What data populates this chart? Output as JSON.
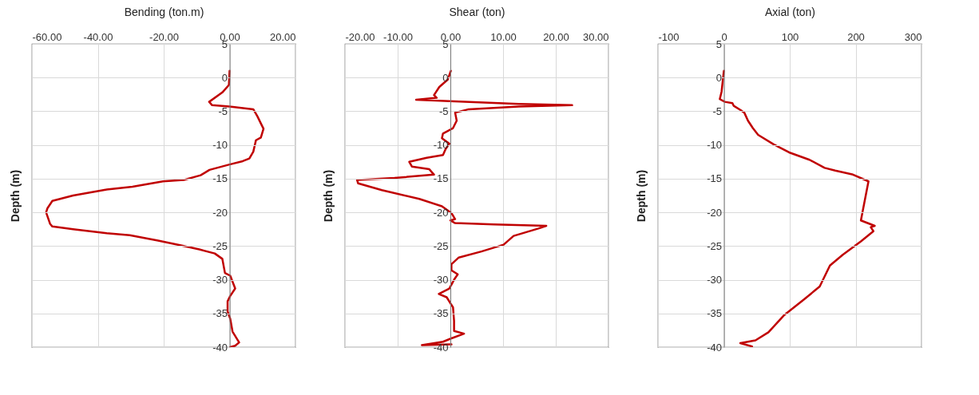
{
  "chart_data": [
    {
      "type": "line",
      "xlabel": "Bending (ton.m)",
      "ylabel": "Depth (m)",
      "xlim": [
        -60,
        20
      ],
      "xticks": [
        {
          "value": -60,
          "label": "-60.00"
        },
        {
          "value": -40,
          "label": "-40.00"
        },
        {
          "value": -20,
          "label": "-20.00"
        },
        {
          "value": 0,
          "label": "0.00"
        },
        {
          "value": 20,
          "label": "20.00"
        }
      ],
      "ylim": [
        -40,
        5
      ],
      "yticks": [
        -40,
        -35,
        -30,
        -25,
        -20,
        -15,
        -10,
        -5,
        0,
        5
      ],
      "grid": true,
      "series": [
        {
          "color": "#c00000",
          "x": [
            0,
            -0.2,
            -2.2,
            -6.2,
            -5.3,
            0,
            7.2,
            8.4,
            10.3,
            9.5,
            8,
            7.2,
            6,
            4,
            0,
            -6.1,
            -8.8,
            -13.9,
            -20.2,
            -29.5,
            -37.3,
            -47.5,
            -53.8,
            -55.3,
            -55.7,
            -54.5,
            -53.8,
            -47.5,
            -37.3,
            -30.3,
            -21.7,
            -13.9,
            -9.2,
            -4.5,
            -2.2,
            -1.4,
            0.2,
            1.7,
            0.2,
            -0.6,
            -0.6,
            0.2,
            0.9,
            2.9,
            1.7,
            0.2
          ],
          "values": [
            1,
            -1.1,
            -2.2,
            -3.6,
            -4.1,
            -4.3,
            -4.7,
            -5.7,
            -7.6,
            -8.9,
            -9.3,
            -11,
            -12,
            -12.4,
            -12.9,
            -13.7,
            -14.5,
            -15.2,
            -15.4,
            -16.2,
            -16.6,
            -17.5,
            -18.3,
            -19.4,
            -20,
            -21.7,
            -22.1,
            -22.5,
            -23.1,
            -23.4,
            -24.2,
            -25,
            -25.5,
            -26.1,
            -26.9,
            -29,
            -29.4,
            -31.3,
            -32.4,
            -33.2,
            -34.7,
            -35.8,
            -37.7,
            -39.3,
            -39.8,
            -40
          ]
        }
      ]
    },
    {
      "type": "line",
      "xlabel": "Shear (ton)",
      "ylabel": "Depth (m)",
      "xlim": [
        -20,
        30
      ],
      "xticks": [
        {
          "value": -20,
          "label": "-20.00"
        },
        {
          "value": -10,
          "label": "-10.00"
        },
        {
          "value": 0,
          "label": "0.00"
        },
        {
          "value": 10,
          "label": "10.00"
        },
        {
          "value": 20,
          "label": "20.00"
        },
        {
          "value": 30,
          "label": "30.00"
        }
      ],
      "ylim": [
        -40,
        5
      ],
      "yticks": [
        -40,
        -35,
        -30,
        -25,
        -20,
        -15,
        -10,
        -5,
        0,
        5
      ],
      "grid": true,
      "series": [
        {
          "color": "#c00000",
          "x": [
            0.1,
            -0.5,
            -2.1,
            -3.1,
            -2.6,
            -6.5,
            -0.2,
            13,
            23.1,
            13,
            3.5,
            0.9,
            1.2,
            0.5,
            -1.4,
            -1.6,
            -0.2,
            -0.9,
            -1.4,
            -4.5,
            -7.8,
            -7.3,
            -4,
            -3.1,
            -10.6,
            -17.7,
            -17.5,
            -13,
            -5.9,
            -1.6,
            0.2,
            0.9,
            0,
            0.9,
            8.3,
            18.2,
            16.7,
            12,
            10.1,
            5.9,
            1.6,
            0.2,
            0.2,
            1.4,
            0.7,
            -0.2,
            -2.2,
            -0.7,
            0.5,
            0.7,
            0.7,
            2.6,
            0.2,
            -1.4,
            -5.4,
            0.2
          ],
          "values": [
            1,
            -0.3,
            -1.4,
            -2.6,
            -3,
            -3.3,
            -3.5,
            -3.9,
            -4.1,
            -4.3,
            -4.7,
            -5.2,
            -6.4,
            -7.5,
            -8.3,
            -9,
            -9.8,
            -10.6,
            -11.5,
            -11.9,
            -12.5,
            -13.2,
            -13.6,
            -14.4,
            -14.9,
            -15.2,
            -15.7,
            -16.7,
            -18,
            -19.1,
            -20.1,
            -21,
            -21.2,
            -21.6,
            -21.8,
            -22,
            -22.4,
            -23.5,
            -24.8,
            -25.8,
            -26.7,
            -27.7,
            -28.6,
            -29.2,
            -30,
            -31.3,
            -32.1,
            -32.6,
            -34.1,
            -36.1,
            -37.6,
            -38,
            -38.7,
            -39.2,
            -39.7,
            -39.6
          ]
        }
      ]
    },
    {
      "type": "line",
      "xlabel": "Axial (ton)",
      "ylabel": "Depth (m)",
      "xlim": [
        -100,
        300
      ],
      "xticks": [
        -100,
        0,
        100,
        200,
        300
      ],
      "ylim": [
        -40,
        5
      ],
      "yticks": [
        -40,
        -35,
        -30,
        -25,
        -20,
        -15,
        -10,
        -5,
        0,
        5
      ],
      "grid": true,
      "series": [
        {
          "color": "#c00000",
          "x": [
            0,
            -3.5,
            -6.2,
            1.6,
            13,
            15,
            25,
            31,
            36.6,
            44,
            52,
            75.5,
            99,
            130,
            153,
            169,
            196,
            219.5,
            208,
            229,
            223,
            227,
            208,
            180.5,
            161,
            145.5,
            122,
            91,
            67.7,
            48,
            25,
            42.8
          ],
          "values": [
            1,
            -2.1,
            -3.2,
            -3.6,
            -3.8,
            -4.2,
            -4.8,
            -5.2,
            -6.4,
            -7.5,
            -8.5,
            -9.9,
            -11.1,
            -12.2,
            -13.4,
            -13.8,
            -14.4,
            -15.4,
            -21.2,
            -22,
            -22.2,
            -22.8,
            -24.3,
            -26.3,
            -27.9,
            -31,
            -32.9,
            -35.3,
            -37.8,
            -39,
            -39.4,
            -39.9
          ]
        }
      ]
    }
  ]
}
